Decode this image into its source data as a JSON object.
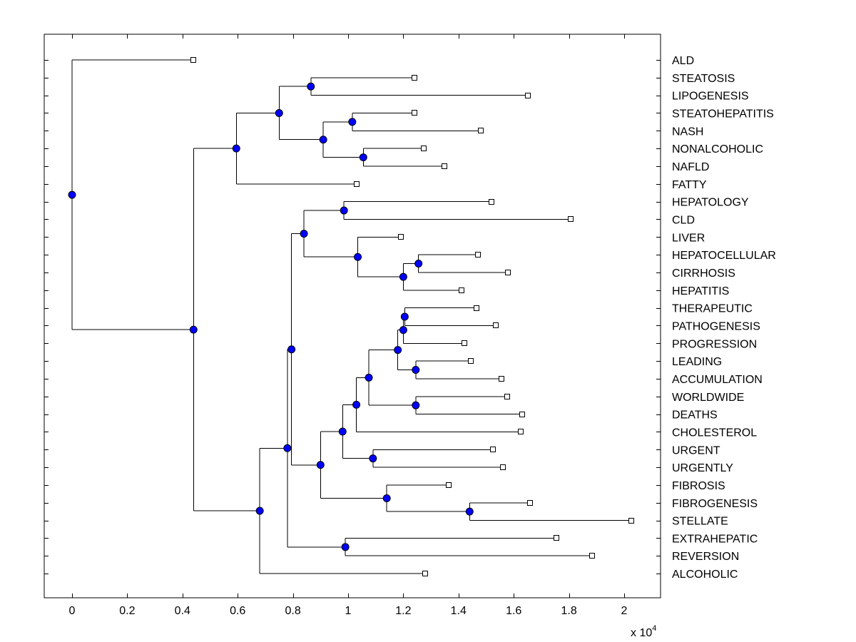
{
  "chart_data": {
    "type": "dendrogram",
    "title": "",
    "xlabel": "",
    "ylabel": "",
    "x_scale_label": "x 10",
    "x_scale_exponent": "4",
    "xlim": [
      -0.1,
      2.13
    ],
    "x_ticks": [
      0,
      0.2,
      0.4,
      0.6,
      0.8,
      1,
      1.2,
      1.4,
      1.6,
      1.8,
      2
    ],
    "x_tick_labels": [
      "0",
      "0.2",
      "0.4",
      "0.6",
      "0.8",
      "1",
      "1.2",
      "1.4",
      "1.6",
      "1.8",
      "2"
    ],
    "grid": false,
    "leaves": [
      {
        "label": "ALD",
        "x": 0.44
      },
      {
        "label": "STEATOSIS",
        "x": 1.24
      },
      {
        "label": "LIPOGENESIS",
        "x": 1.65
      },
      {
        "label": "STEATOHEPATITIS",
        "x": 1.24
      },
      {
        "label": "NASH",
        "x": 1.48
      },
      {
        "label": "NONALCOHOLIC",
        "x": 1.275
      },
      {
        "label": "NAFLD",
        "x": 1.35
      },
      {
        "label": "FATTY",
        "x": 1.03
      },
      {
        "label": "HEPATOLOGY",
        "x": 1.52
      },
      {
        "label": "CLD",
        "x": 1.805
      },
      {
        "label": "LIVER",
        "x": 1.19
      },
      {
        "label": "HEPATOCELLULAR",
        "x": 1.47
      },
      {
        "label": "CIRRHOSIS",
        "x": 1.58
      },
      {
        "label": "HEPATITIS",
        "x": 1.41
      },
      {
        "label": "THERAPEUTIC",
        "x": 1.465
      },
      {
        "label": "PATHOGENESIS",
        "x": 1.535
      },
      {
        "label": "PROGRESSION",
        "x": 1.42
      },
      {
        "label": "LEADING",
        "x": 1.445
      },
      {
        "label": "ACCUMULATION",
        "x": 1.555
      },
      {
        "label": "WORLDWIDE",
        "x": 1.575
      },
      {
        "label": "DEATHS",
        "x": 1.63
      },
      {
        "label": "CHOLESTEROL",
        "x": 1.625
      },
      {
        "label": "URGENT",
        "x": 1.525
      },
      {
        "label": "URGENTLY",
        "x": 1.56
      },
      {
        "label": "FIBROSIS",
        "x": 1.365
      },
      {
        "label": "FIBROGENESIS",
        "x": 1.66
      },
      {
        "label": "STELLATE",
        "x": 2.025
      },
      {
        "label": "EXTRAHEPATIC",
        "x": 1.755
      },
      {
        "label": "REVERSION",
        "x": 1.885
      },
      {
        "label": "ALCOHOLIC",
        "x": 1.28
      }
    ],
    "merges": [
      {
        "x": 0.865,
        "a": "L1",
        "b": "L2"
      },
      {
        "x": 1.015,
        "a": "L3",
        "b": "L4"
      },
      {
        "x": 1.055,
        "a": "L5",
        "b": "L6"
      },
      {
        "x": 0.91,
        "a": "N1",
        "b": "N2"
      },
      {
        "x": 0.75,
        "a": "N0",
        "b": "N3"
      },
      {
        "x": 0.595,
        "a": "N4",
        "b": "L7"
      },
      {
        "x": 0.985,
        "a": "L8",
        "b": "L9"
      },
      {
        "x": 1.255,
        "a": "L11",
        "b": "L12"
      },
      {
        "x": 1.2,
        "a": "N7",
        "b": "L13"
      },
      {
        "x": 1.035,
        "a": "L10",
        "b": "N8"
      },
      {
        "x": 0.84,
        "a": "N6",
        "b": "N9"
      },
      {
        "x": 1.205,
        "a": "L14",
        "b": "L15"
      },
      {
        "x": 1.2,
        "a": "N11",
        "b": "L16"
      },
      {
        "x": 1.245,
        "a": "L17",
        "b": "L18"
      },
      {
        "x": 1.18,
        "a": "N12",
        "b": "N13"
      },
      {
        "x": 1.245,
        "a": "L19",
        "b": "L20"
      },
      {
        "x": 1.075,
        "a": "N14",
        "b": "N15"
      },
      {
        "x": 1.03,
        "a": "N16",
        "b": "L21"
      },
      {
        "x": 1.09,
        "a": "L22",
        "b": "L23"
      },
      {
        "x": 0.98,
        "a": "N17",
        "b": "N18"
      },
      {
        "x": 1.44,
        "a": "L25",
        "b": "L26"
      },
      {
        "x": 1.14,
        "a": "L24",
        "b": "N20"
      },
      {
        "x": 0.9,
        "a": "N19",
        "b": "N21"
      },
      {
        "x": 0.795,
        "a": "N10",
        "b": "N22"
      },
      {
        "x": 0.99,
        "a": "L27",
        "b": "L28"
      },
      {
        "x": 0.78,
        "a": "N23",
        "b": "N24"
      },
      {
        "x": 0.68,
        "a": "N25",
        "b": "L29"
      },
      {
        "x": 0.44,
        "a": "N5",
        "b": "N26"
      },
      {
        "x": 0.0,
        "a": "L0",
        "b": "N27"
      }
    ]
  }
}
